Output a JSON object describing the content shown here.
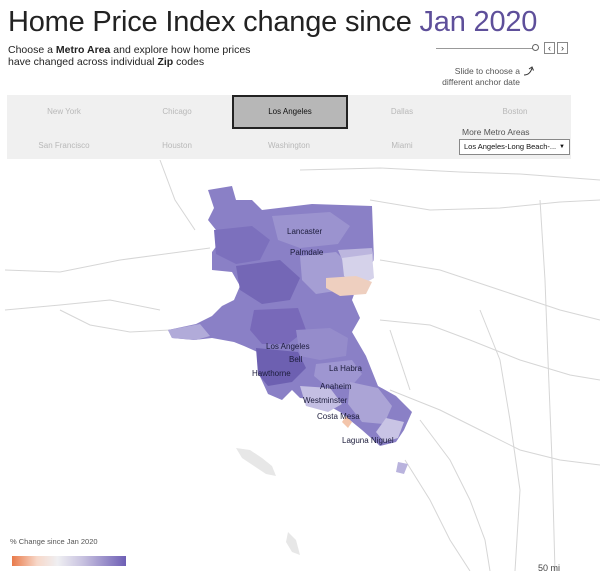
{
  "header": {
    "title_prefix": "Home Price Index change since ",
    "title_date": "Jan 2020",
    "subtitle_1": "Choose a ",
    "subtitle_bold_1": "Metro Area",
    "subtitle_2": " and explore how home prices",
    "subtitle_3": "have changed across individual ",
    "subtitle_bold_2": "Zip",
    "subtitle_4": " codes"
  },
  "slider": {
    "hint_1": "Slide to choose a",
    "hint_2": "different anchor date",
    "prev_label": "‹",
    "next_label": "›",
    "position_fraction": 0.98
  },
  "metros": {
    "row1": [
      "New York",
      "Chicago",
      "Los Angeles",
      "Dallas",
      "Boston"
    ],
    "row2": [
      "San Francisco",
      "Houston",
      "Washington",
      "Miami"
    ],
    "selected": "Los Angeles"
  },
  "more_metros": {
    "label": "More Metro Areas",
    "selected_value": "Los Angeles-Long Beach-..."
  },
  "map": {
    "cities": [
      "Lancaster",
      "Palmdale",
      "Los Angeles",
      "Bell",
      "Hawthorne",
      "La Habra",
      "Anaheim",
      "Westminster",
      "Costa Mesa",
      "Laguna Niguel"
    ]
  },
  "legend": {
    "title": "% Change since Jan 2020",
    "low_color": "#e97a4a",
    "high_color": "#6e5fb5"
  },
  "scale": {
    "label": "50 mi"
  },
  "colors": {
    "accent": "#5e4f9a",
    "region_purple": "#8a7fc9"
  }
}
